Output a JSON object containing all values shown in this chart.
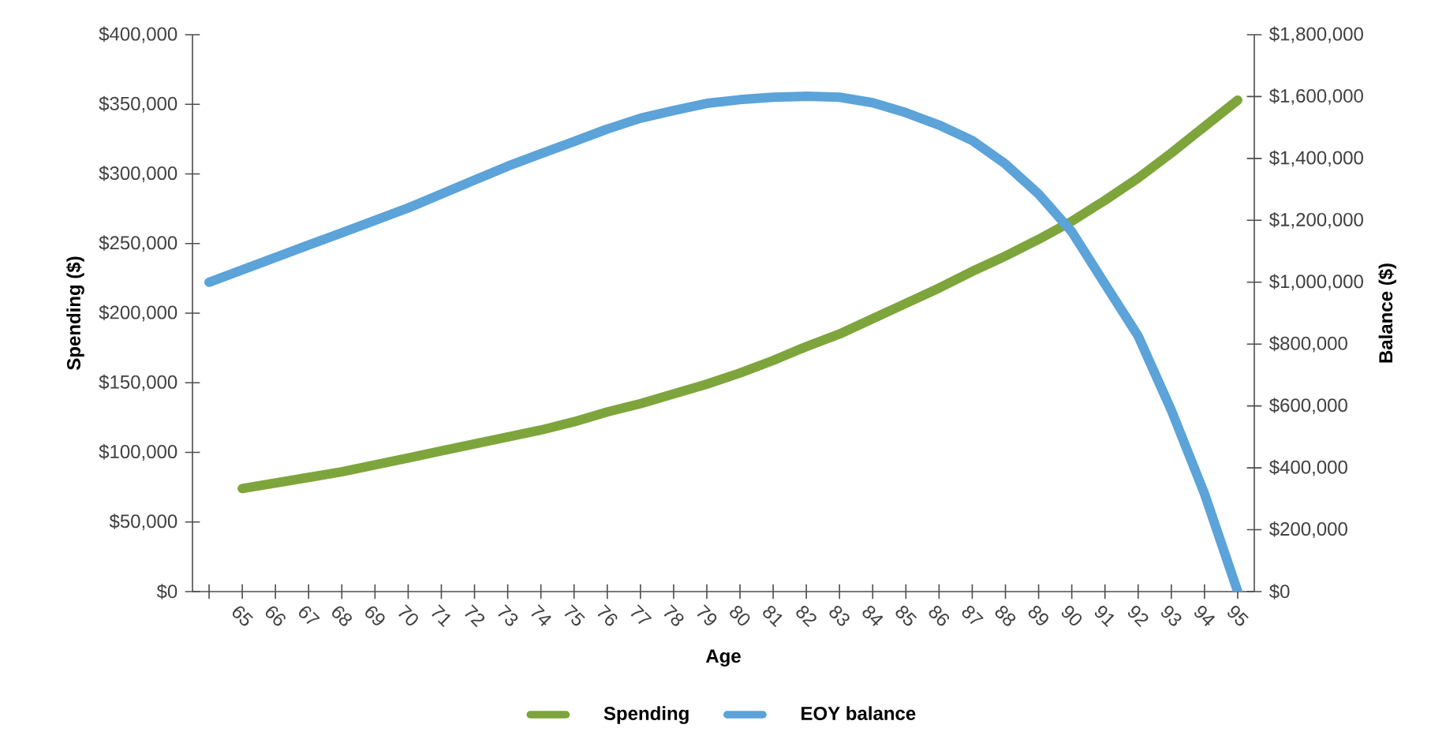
{
  "chart_data": {
    "type": "line",
    "xlabel": "Age",
    "ylabel": "Spending ($)",
    "y2label": "Balance ($)",
    "categories": [
      null,
      "65",
      "66",
      "67",
      "68",
      "69",
      "70",
      "71",
      "72",
      "73",
      "74",
      "75",
      "76",
      "77",
      "78",
      "79",
      "80",
      "81",
      "82",
      "83",
      "84",
      "85",
      "86",
      "87",
      "88",
      "89",
      "90",
      "91",
      "92",
      "93",
      "94",
      "95"
    ],
    "series": [
      {
        "name": "Spending",
        "color": "#7ea53c",
        "values": [
          null,
          74000,
          78000,
          82000,
          86000,
          91000,
          96000,
          101000,
          106000,
          111000,
          116000,
          122000,
          129000,
          135000,
          142000,
          149000,
          157000,
          166000,
          176000,
          185000,
          196000,
          207000,
          218000,
          230000,
          241000,
          253000,
          266000,
          281000,
          297000,
          315000,
          334000,
          353000
        ]
      },
      {
        "name": "EOY balance",
        "color": "#5ba3d9",
        "axis": "y2",
        "values": [
          1000000,
          1040000,
          1080000,
          1120000,
          1160000,
          1200000,
          1240000,
          1285000,
          1330000,
          1375000,
          1415000,
          1455000,
          1495000,
          1530000,
          1555000,
          1578000,
          1590000,
          1598000,
          1601000,
          1598000,
          1580000,
          1548000,
          1508000,
          1458000,
          1382000,
          1285000,
          1163000,
          994000,
          826000,
          586000,
          316000,
          0
        ]
      }
    ],
    "ylim": [
      0,
      400000
    ],
    "yticks": [
      {
        "value": 0,
        "label": "$0"
      },
      {
        "value": 50000,
        "label": "$50,000"
      },
      {
        "value": 100000,
        "label": "$100,000"
      },
      {
        "value": 150000,
        "label": "$150,000"
      },
      {
        "value": 200000,
        "label": "$200,000"
      },
      {
        "value": 250000,
        "label": "$250,000"
      },
      {
        "value": 300000,
        "label": "$300,000"
      },
      {
        "value": 350000,
        "label": "$350,000"
      },
      {
        "value": 400000,
        "label": "$400,000"
      }
    ],
    "y2lim": [
      0,
      1800000
    ],
    "y2ticks": [
      {
        "value": 0,
        "label": "$0"
      },
      {
        "value": 200000,
        "label": "$200,000"
      },
      {
        "value": 400000,
        "label": "$400,000"
      },
      {
        "value": 600000,
        "label": "$600,000"
      },
      {
        "value": 800000,
        "label": "$800,000"
      },
      {
        "value": 1000000,
        "label": "$1,000,000"
      },
      {
        "value": 1200000,
        "label": "$1,200,000"
      },
      {
        "value": 1400000,
        "label": "$1,400,000"
      },
      {
        "value": 1600000,
        "label": "$1,600,000"
      },
      {
        "value": 1800000,
        "label": "$1,800,000"
      }
    ],
    "grid": false,
    "legend": "bottom",
    "marker": "none",
    "line_style": "solid"
  }
}
